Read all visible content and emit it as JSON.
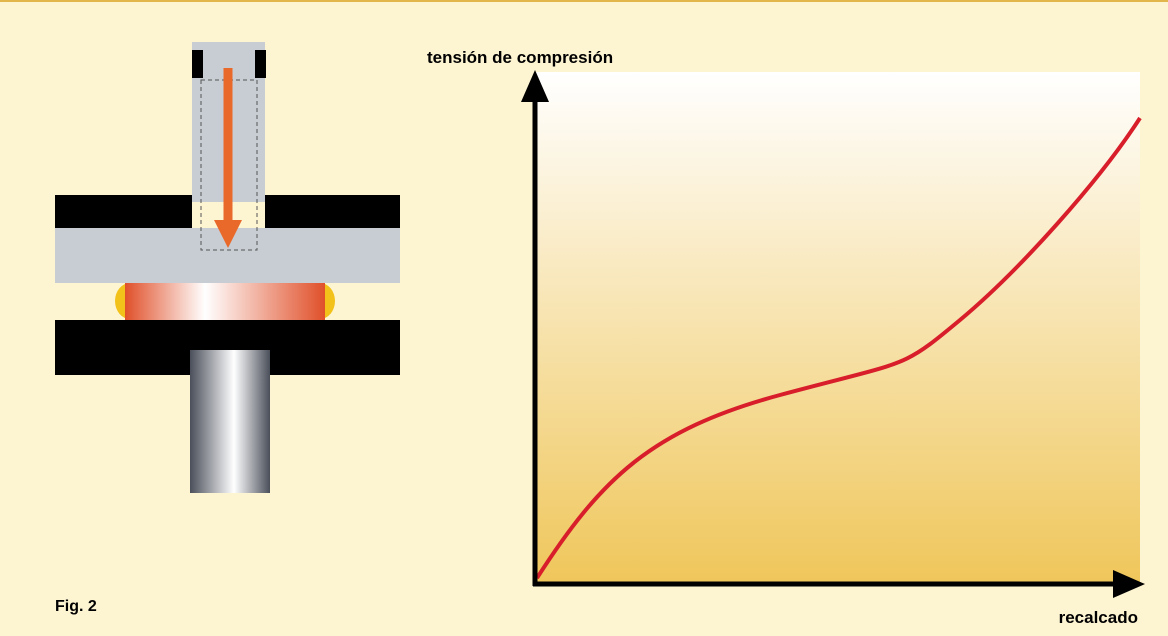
{
  "figure_label": "Fig. 2",
  "graph": {
    "y_axis_label": "tensión de compresión",
    "x_axis_label": "recalcado"
  }
}
